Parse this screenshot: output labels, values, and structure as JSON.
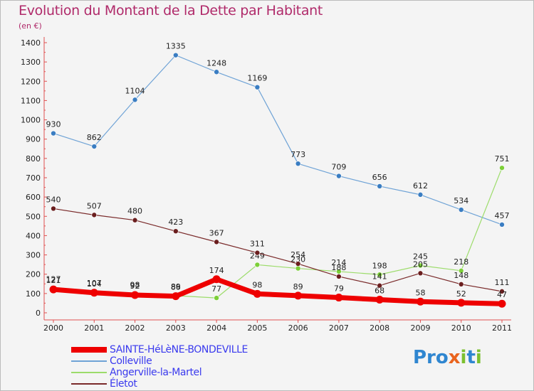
{
  "title": "Evolution du Montant de la Dette par Habitant",
  "subtitle": "(en €)",
  "chart_data": {
    "type": "line",
    "title": "Evolution du Montant de la Dette par Habitant",
    "subtitle": "(en €)",
    "x": [
      "2000",
      "2001",
      "2002",
      "2003",
      "2004",
      "2005",
      "2006",
      "2007",
      "2008",
      "2009",
      "2010",
      "2011"
    ],
    "ylim": [
      0,
      1400
    ],
    "yticks": [
      0,
      100,
      200,
      300,
      400,
      500,
      600,
      700,
      800,
      900,
      1000,
      1100,
      1200,
      1300,
      1400
    ],
    "grid": false,
    "legend": "bottom-left",
    "series": [
      {
        "name": "Colleville",
        "color": "#6fa3d6",
        "marker": "#3a7dc2",
        "width": 1.2,
        "values": [
          930,
          862,
          1104,
          1335,
          1248,
          1169,
          773,
          709,
          656,
          612,
          534,
          457
        ]
      },
      {
        "name": "Angerville-la-Martel",
        "color": "#9cdc6a",
        "marker": "#7ccf38",
        "width": 1.2,
        "values": [
          127,
          107,
          98,
          89,
          77,
          249,
          230,
          214,
          198,
          245,
          218,
          751
        ]
      },
      {
        "name": "Életot",
        "color": "#7a2a2a",
        "marker": "#6a1e1e",
        "width": 1.2,
        "values": [
          540,
          507,
          480,
          423,
          367,
          311,
          254,
          188,
          141,
          205,
          148,
          111
        ]
      },
      {
        "name": "SAINTE-HéLèNE-BONDEVILLE",
        "color": "#ee0000",
        "marker": "#ee0000",
        "width": 7,
        "values": [
          121,
          104,
          92,
          86,
          174,
          98,
          89,
          79,
          68,
          58,
          52,
          47
        ]
      }
    ]
  },
  "legend": [
    {
      "label": "SAINTE-HéLèNE-BONDEVILLE",
      "color": "#ee0000"
    },
    {
      "label": "Colleville",
      "color": "#6fa3d6"
    },
    {
      "label": "Angerville-la-Martel",
      "color": "#9cdc6a"
    },
    {
      "label": "Életot",
      "color": "#7a2a2a"
    }
  ],
  "logo": {
    "p1": "Pro",
    "x": "x",
    "i": "i",
    "t": "t",
    "i2": "i"
  }
}
